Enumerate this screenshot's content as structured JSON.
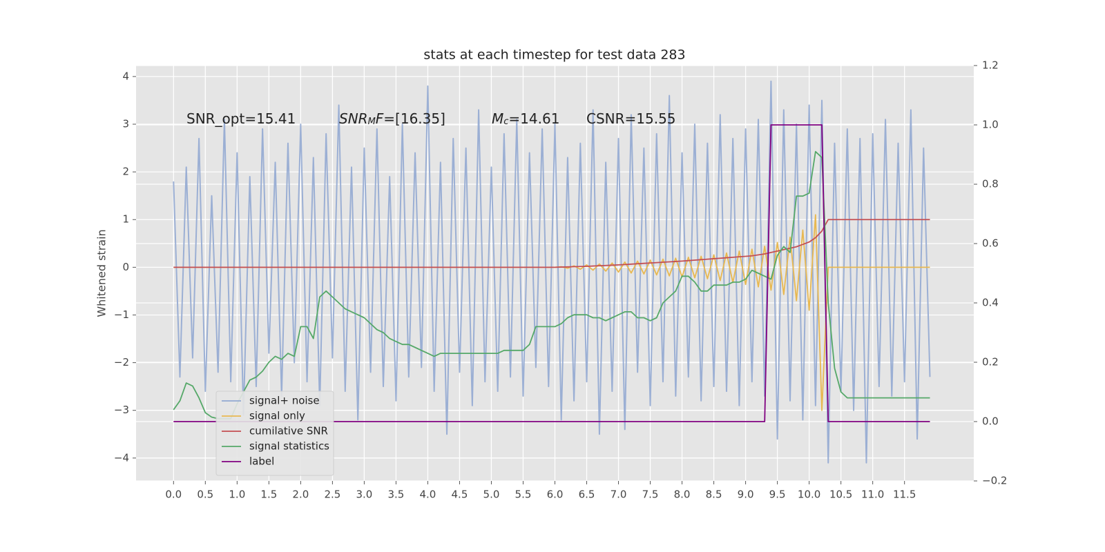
{
  "chart_data": {
    "type": "line",
    "title": "stats at each timestep for test data 283",
    "y_label": "Whitened strain",
    "annotations": [
      {
        "parts": [
          {
            "text": "SNR_opt=15.41"
          }
        ]
      },
      {
        "parts": [
          {
            "text": "SNR",
            "italic": true
          },
          {
            "text": "M",
            "italic": true,
            "sub": true
          },
          {
            "text": "F",
            "italic": true
          },
          {
            "text": "=[16.35]"
          }
        ]
      },
      {
        "parts": [
          {
            "text": "M",
            "italic": true
          },
          {
            "text": "c",
            "italic": true,
            "sub": true
          },
          {
            "text": "=14.61"
          }
        ]
      },
      {
        "parts": [
          {
            "text": "CSNR=15.55"
          }
        ]
      }
    ],
    "xlim": [
      -0.59,
      12.59
    ],
    "ylim": [
      -4.48,
      4.23
    ],
    "y2lim": [
      -0.2,
      1.2
    ],
    "xticks": [
      {
        "value": 0,
        "label": "0.0"
      },
      0.5,
      {
        "value": 1,
        "label": "1.0"
      },
      1.5,
      {
        "value": 2,
        "label": "2.0"
      },
      2.5,
      {
        "value": 3,
        "label": "3.0"
      },
      3.5,
      {
        "value": 4,
        "label": "4.0"
      },
      4.5,
      {
        "value": 5,
        "label": "5.0"
      },
      5.5,
      {
        "value": 6,
        "label": "6.0"
      },
      6.5,
      {
        "value": 7,
        "label": "7.0"
      },
      7.5,
      {
        "value": 8,
        "label": "8.0"
      },
      8.5,
      {
        "value": 9,
        "label": "9.0"
      },
      9.5,
      {
        "value": 10,
        "label": "10.0"
      },
      10.5,
      {
        "value": 11,
        "label": "11.0"
      },
      11.5
    ],
    "yticks": [
      {
        "value": -4,
        "label": "−4"
      },
      {
        "value": -3,
        "label": "−3"
      },
      {
        "value": -2,
        "label": "−2"
      },
      {
        "value": -1,
        "label": "−1"
      },
      0,
      1,
      2,
      3,
      4
    ],
    "y2ticks": [
      {
        "value": -0.2,
        "label": "−0.2"
      },
      {
        "value": 0,
        "label": "0.0"
      },
      0.2,
      0.4,
      0.6,
      0.8,
      {
        "value": 1,
        "label": "1.0"
      },
      1.2
    ],
    "grid": true,
    "legend": "lower left",
    "x": [
      0,
      0.1,
      0.2,
      0.3,
      0.4,
      0.5,
      0.6,
      0.7,
      0.8,
      0.9,
      1,
      1.1,
      1.2,
      1.3,
      1.4,
      1.5,
      1.6,
      1.7,
      1.8,
      1.9,
      2,
      2.1,
      2.2,
      2.3,
      2.4,
      2.5,
      2.6,
      2.7,
      2.8,
      2.9,
      3,
      3.1,
      3.2,
      3.3,
      3.4,
      3.5,
      3.6,
      3.7,
      3.8,
      3.9,
      4,
      4.1,
      4.2,
      4.3,
      4.4,
      4.5,
      4.6,
      4.7,
      4.8,
      4.9,
      5,
      5.1,
      5.2,
      5.3,
      5.4,
      5.5,
      5.6,
      5.7,
      5.8,
      5.9,
      6,
      6.1,
      6.2,
      6.3,
      6.4,
      6.5,
      6.6,
      6.7,
      6.8,
      6.9,
      7,
      7.1,
      7.2,
      7.3,
      7.4,
      7.5,
      7.6,
      7.7,
      7.8,
      7.9,
      8,
      8.1,
      8.2,
      8.3,
      8.4,
      8.5,
      8.6,
      8.7,
      8.8,
      8.9,
      9,
      9.1,
      9.2,
      9.3,
      9.4,
      9.5,
      9.6,
      9.7,
      9.8,
      9.9,
      10,
      10.1,
      10.2,
      10.3,
      10.4,
      10.5,
      10.6,
      10.7,
      10.8,
      10.9,
      11,
      11.1,
      11.2,
      11.3,
      11.4,
      11.5,
      11.6,
      11.7,
      11.8,
      11.9
    ],
    "series": [
      {
        "name": "signal+ noise",
        "color": "#92a8d1",
        "values": [
          1.8,
          -2.3,
          2.1,
          -1.9,
          2.7,
          -2.6,
          1.5,
          -2.2,
          3.1,
          -2.4,
          2.4,
          -3.1,
          1.9,
          -2.5,
          2.9,
          -1.8,
          2.2,
          -2.7,
          2.6,
          -2.0,
          3.0,
          -2.4,
          2.3,
          -2.9,
          2.8,
          -1.9,
          3.4,
          -2.6,
          2.1,
          -3.2,
          2.5,
          -2.2,
          2.9,
          -2.5,
          1.9,
          -2.8,
          3.0,
          -2.3,
          2.4,
          -2.1,
          3.8,
          -2.6,
          2.2,
          -3.5,
          2.7,
          -2.2,
          2.5,
          -2.9,
          3.3,
          -2.4,
          2.1,
          -2.6,
          2.8,
          -2.3,
          3.1,
          -2.7,
          2.4,
          -2.1,
          2.9,
          -2.5,
          3.0,
          -3.2,
          2.3,
          -2.8,
          2.6,
          -2.4,
          3.3,
          -3.5,
          2.2,
          -2.6,
          2.7,
          -3.4,
          3.2,
          -2.2,
          2.5,
          -2.9,
          2.8,
          -2.4,
          3.6,
          -2.7,
          2.4,
          -2.3,
          3.0,
          -2.8,
          2.6,
          -2.5,
          3.2,
          -2.6,
          2.7,
          -2.9,
          2.9,
          -2.4,
          3.1,
          -2.7,
          3.9,
          -3.6,
          3.3,
          -2.8,
          3.0,
          -3.2,
          3.4,
          -2.9,
          3.5,
          -4.1,
          2.6,
          -2.6,
          2.9,
          -3.0,
          2.7,
          -4.1,
          2.8,
          -2.5,
          3.1,
          -2.7,
          2.6,
          -2.4,
          3.3,
          -3.6,
          2.5,
          -2.3
        ]
      },
      {
        "name": "signal only",
        "color": "#e8b850",
        "values": [
          0,
          0,
          0,
          0,
          0,
          0,
          0,
          0,
          0,
          0,
          0,
          0,
          0,
          0,
          0,
          0,
          0,
          0,
          0,
          0,
          0,
          0,
          0,
          0,
          0,
          0,
          0,
          0,
          0,
          0,
          0,
          0,
          0,
          0,
          0,
          0,
          0,
          0,
          0,
          0,
          0,
          0,
          0,
          0,
          0,
          0,
          0,
          0,
          0,
          0,
          0,
          0,
          0,
          0,
          0,
          0,
          0,
          0,
          0,
          0,
          0,
          0.01,
          -0.02,
          0.03,
          -0.04,
          0.05,
          -0.06,
          0.07,
          -0.08,
          0.09,
          -0.1,
          0.11,
          -0.12,
          0.13,
          -0.14,
          0.15,
          -0.16,
          0.17,
          -0.18,
          0.19,
          -0.2,
          0.21,
          -0.22,
          0.23,
          -0.24,
          0.26,
          -0.28,
          0.3,
          -0.32,
          0.34,
          -0.36,
          0.38,
          -0.41,
          0.44,
          -0.48,
          0.52,
          -0.57,
          0.63,
          -0.7,
          0.78,
          -0.9,
          1.1,
          -3.0,
          0,
          0,
          0,
          0,
          0,
          0,
          0,
          0,
          0,
          0,
          0,
          0,
          0,
          0,
          0,
          0,
          0
        ]
      },
      {
        "name": "cumilative SNR",
        "color": "#c44e52",
        "values": [
          0,
          0,
          0,
          0,
          0,
          0,
          0,
          0,
          0,
          0,
          0,
          0,
          0,
          0,
          0,
          0,
          0,
          0,
          0,
          0,
          0,
          0,
          0,
          0,
          0,
          0,
          0,
          0,
          0,
          0,
          0,
          0,
          0,
          0,
          0,
          0,
          0,
          0,
          0,
          0,
          0,
          0,
          0,
          0,
          0,
          0,
          0,
          0,
          0,
          0,
          0,
          0,
          0,
          0,
          0,
          0,
          0,
          0,
          0,
          0,
          0,
          0.004,
          0.008,
          0.012,
          0.016,
          0.02,
          0.026,
          0.032,
          0.038,
          0.044,
          0.05,
          0.058,
          0.066,
          0.074,
          0.082,
          0.09,
          0.098,
          0.106,
          0.114,
          0.122,
          0.13,
          0.14,
          0.15,
          0.16,
          0.17,
          0.18,
          0.19,
          0.2,
          0.21,
          0.22,
          0.23,
          0.24,
          0.26,
          0.28,
          0.31,
          0.34,
          0.37,
          0.4,
          0.43,
          0.48,
          0.53,
          0.62,
          0.76,
          1,
          1,
          1,
          1,
          1,
          1,
          1,
          1,
          1,
          1,
          1,
          1,
          1,
          1,
          1,
          1,
          1
        ]
      },
      {
        "name": "signal statistics",
        "color": "#55a868",
        "axis": "y2",
        "values": [
          0.04,
          0.07,
          0.13,
          0.12,
          0.08,
          0.03,
          0.015,
          0.01,
          0.01,
          0.01,
          0.06,
          0.1,
          0.14,
          0.15,
          0.17,
          0.2,
          0.22,
          0.21,
          0.23,
          0.22,
          0.32,
          0.32,
          0.28,
          0.42,
          0.44,
          0.42,
          0.4,
          0.38,
          0.37,
          0.36,
          0.35,
          0.33,
          0.31,
          0.3,
          0.28,
          0.27,
          0.26,
          0.26,
          0.25,
          0.24,
          0.23,
          0.22,
          0.23,
          0.23,
          0.23,
          0.23,
          0.23,
          0.23,
          0.23,
          0.23,
          0.23,
          0.23,
          0.24,
          0.24,
          0.24,
          0.24,
          0.26,
          0.32,
          0.32,
          0.32,
          0.32,
          0.33,
          0.35,
          0.36,
          0.36,
          0.36,
          0.35,
          0.35,
          0.34,
          0.35,
          0.36,
          0.37,
          0.37,
          0.35,
          0.35,
          0.34,
          0.35,
          0.4,
          0.42,
          0.44,
          0.49,
          0.49,
          0.47,
          0.44,
          0.44,
          0.46,
          0.46,
          0.46,
          0.47,
          0.47,
          0.48,
          0.51,
          0.5,
          0.49,
          0.48,
          0.56,
          0.59,
          0.57,
          0.76,
          0.76,
          0.77,
          0.91,
          0.89,
          0.4,
          0.18,
          0.1,
          0.08,
          0.08,
          0.08,
          0.08,
          0.08,
          0.08,
          0.08,
          0.08,
          0.08,
          0.08,
          0.08,
          0.08,
          0.08,
          0.08
        ]
      },
      {
        "name": "label",
        "color": "#800080",
        "axis": "y2",
        "values": [
          0,
          0,
          0,
          0,
          0,
          0,
          0,
          0,
          0,
          0,
          0,
          0,
          0,
          0,
          0,
          0,
          0,
          0,
          0,
          0,
          0,
          0,
          0,
          0,
          0,
          0,
          0,
          0,
          0,
          0,
          0,
          0,
          0,
          0,
          0,
          0,
          0,
          0,
          0,
          0,
          0,
          0,
          0,
          0,
          0,
          0,
          0,
          0,
          0,
          0,
          0,
          0,
          0,
          0,
          0,
          0,
          0,
          0,
          0,
          0,
          0,
          0,
          0,
          0,
          0,
          0,
          0,
          0,
          0,
          0,
          0,
          0,
          0,
          0,
          0,
          0,
          0,
          0,
          0,
          0,
          0,
          0,
          0,
          0,
          0,
          0,
          0,
          0,
          0,
          0,
          0,
          0,
          0,
          0,
          1,
          1,
          1,
          1,
          1,
          1,
          1,
          1,
          1,
          0,
          0,
          0,
          0,
          0,
          0,
          0,
          0,
          0,
          0,
          0,
          0,
          0,
          0,
          0,
          0,
          0
        ]
      }
    ]
  }
}
